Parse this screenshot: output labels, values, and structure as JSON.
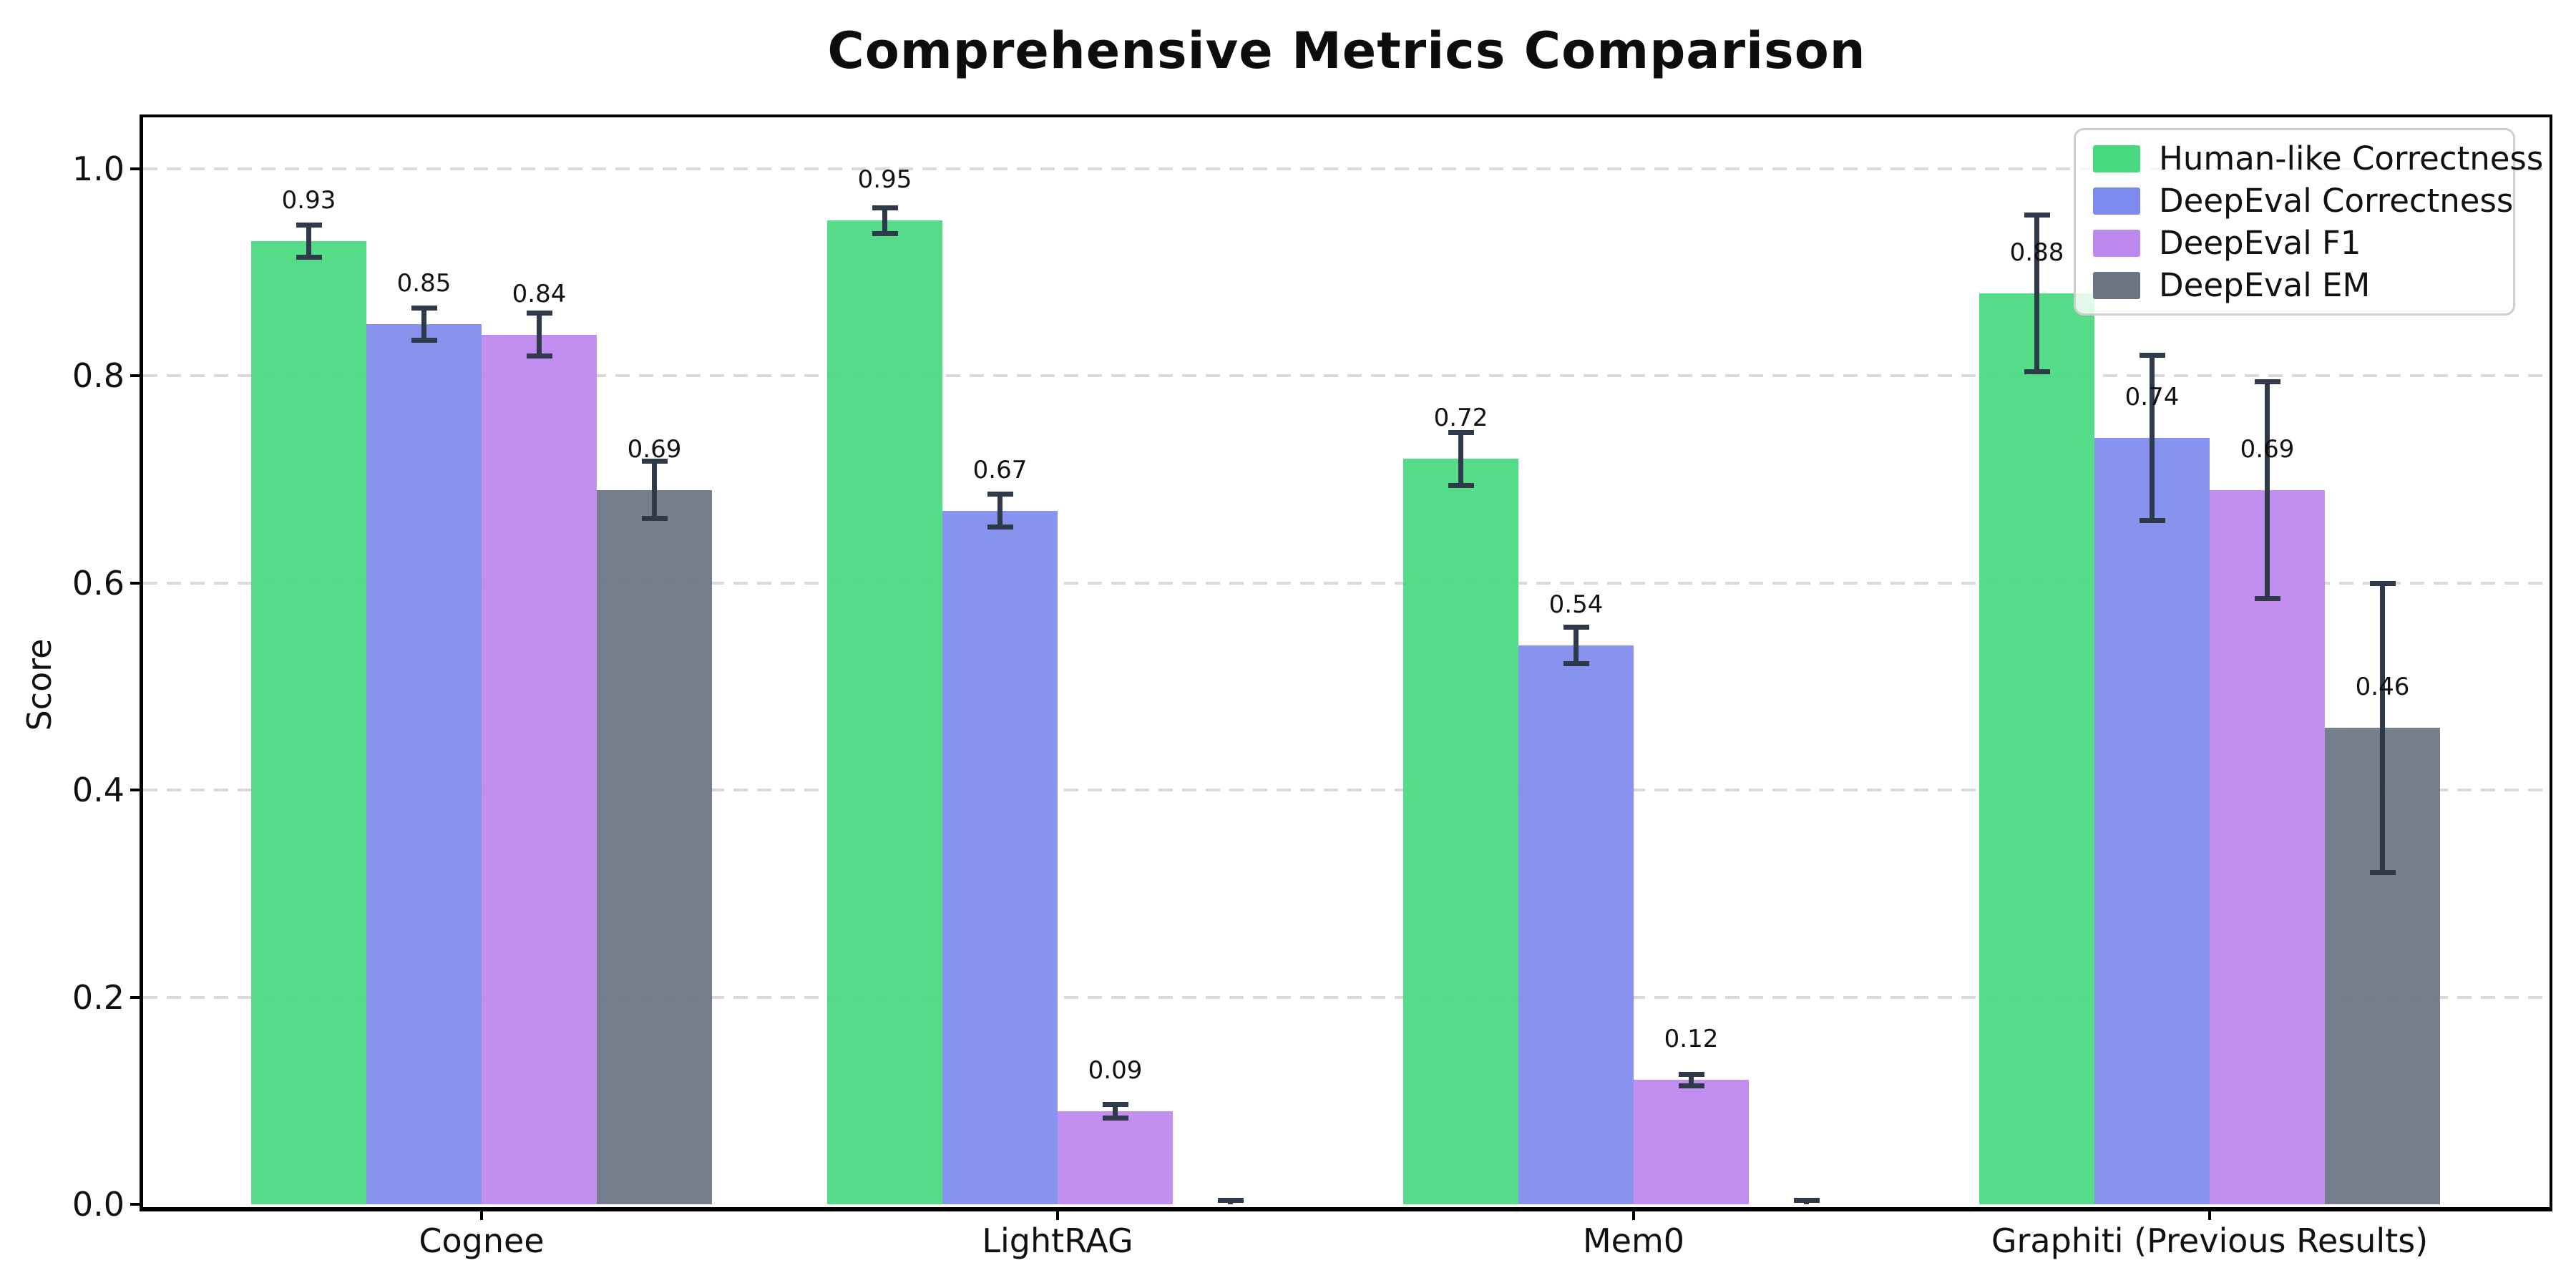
{
  "title": "Comprehensive Metrics Comparison",
  "ylabel": "Score",
  "chart_data": {
    "type": "bar",
    "title": "Comprehensive Metrics Comparison",
    "xlabel": "",
    "ylabel": "Score",
    "categories": [
      "Cognee",
      "LightRAG",
      "Mem0",
      "Graphiti (Previous Results)"
    ],
    "series": [
      {
        "name": "Human-like Correctness",
        "color": "#48d97f",
        "values": [
          0.93,
          0.95,
          0.72,
          0.88
        ],
        "errors": [
          0.016,
          0.013,
          0.026,
          0.076
        ],
        "labels": [
          "0.93",
          "0.95",
          "0.72",
          "0.88"
        ]
      },
      {
        "name": "DeepEval Correctness",
        "color": "#7e8bee",
        "values": [
          0.85,
          0.67,
          0.54,
          0.74
        ],
        "errors": [
          0.016,
          0.016,
          0.018,
          0.08
        ],
        "labels": [
          "0.85",
          "0.67",
          "0.54",
          "0.74"
        ]
      },
      {
        "name": "DeepEval F1",
        "color": "#bd87f0",
        "values": [
          0.84,
          0.09,
          0.12,
          0.69
        ],
        "errors": [
          0.021,
          0.007,
          0.006,
          0.105
        ],
        "labels": [
          "0.84",
          "0.09",
          "0.12",
          "0.69"
        ]
      },
      {
        "name": "DeepEval EM",
        "color": "#6b7482",
        "values": [
          0.69,
          0.0,
          0.0,
          0.46
        ],
        "errors": [
          0.028,
          0.004,
          0.004,
          0.14
        ],
        "labels": [
          "0.69",
          null,
          null,
          "0.46"
        ]
      }
    ],
    "yticks": [
      "0.0",
      "0.2",
      "0.4",
      "0.6",
      "0.8",
      "1.0"
    ],
    "ytick_values": [
      0.0,
      0.2,
      0.4,
      0.6,
      0.8,
      1.0
    ],
    "ylim": [
      0.0,
      1.05
    ],
    "grid": "horizontal-dashed",
    "legend_position": "upper-right",
    "error_bar_color": "#2e3a49"
  }
}
